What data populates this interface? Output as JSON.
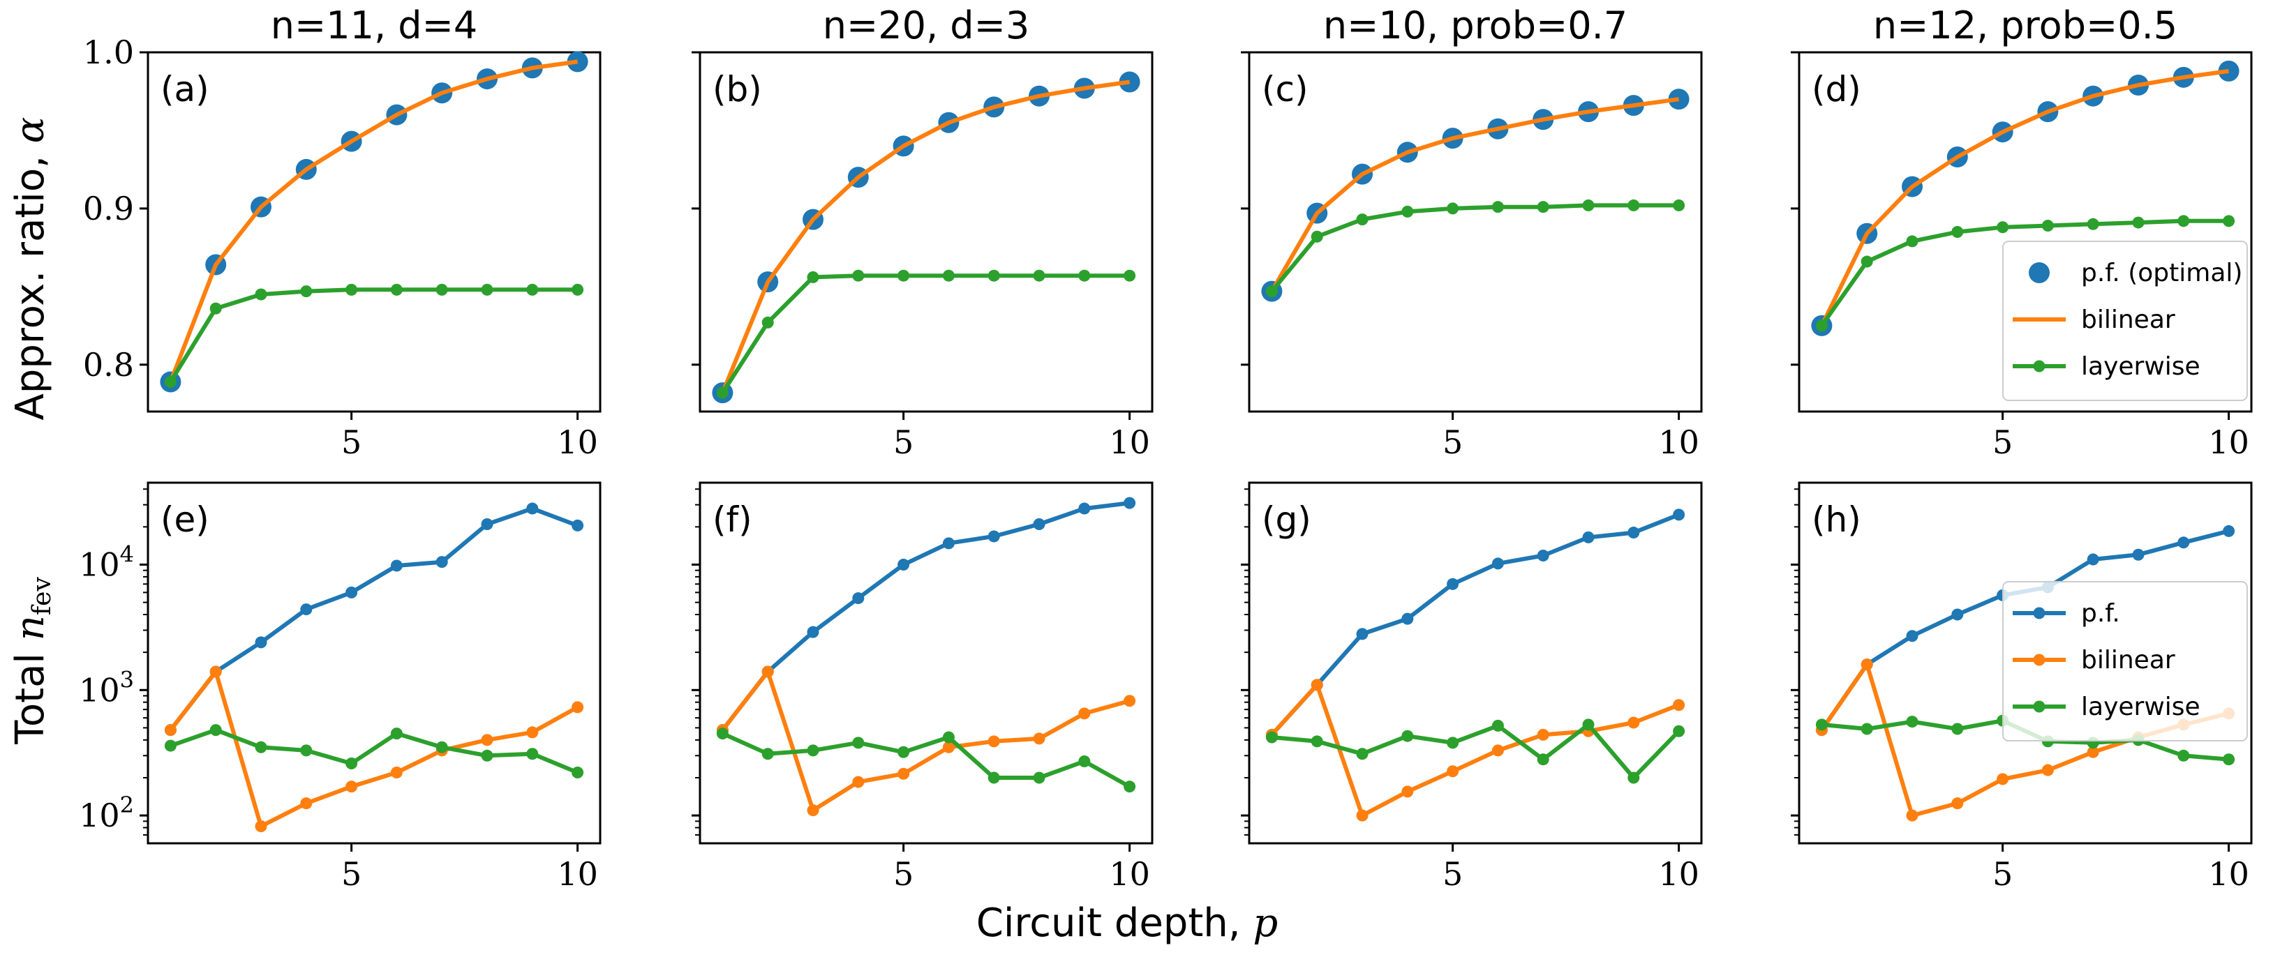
{
  "figure": {
    "xlabel_text": "Circuit depth, ",
    "xlabel_symbol": "p",
    "top_ylabel_text": "Approx. ratio, ",
    "top_ylabel_symbol": "α",
    "bottom_ylabel_text": "Total ",
    "bottom_ylabel_symbol": "n",
    "bottom_ylabel_sub": "fev"
  },
  "colors": {
    "blue": "#1f77b4",
    "orange": "#ff7f0e",
    "green": "#2ca02c"
  },
  "chart_data": [
    {
      "panel": "a",
      "label": "(a)",
      "title": "n=11, d=4",
      "type": "line",
      "yscale": "linear",
      "xlim": [
        0.5,
        10.5
      ],
      "ylim": [
        0.77,
        1.0
      ],
      "xticks": [
        5,
        10
      ],
      "xtick_labels": [
        "5",
        "10"
      ],
      "yticks": [
        0.8,
        0.9,
        1.0
      ],
      "ytick_labels": [
        "0.8",
        "0.9",
        "1.0"
      ],
      "legend": [],
      "series": [
        {
          "name": "p.f. (optimal)",
          "style": "scatter",
          "color": "#1f77b4",
          "x": [
            1,
            2,
            3,
            4,
            5,
            6,
            7,
            8,
            9,
            10
          ],
          "values": [
            0.789,
            0.864,
            0.901,
            0.925,
            0.943,
            0.96,
            0.974,
            0.983,
            0.99,
            0.994
          ]
        },
        {
          "name": "bilinear",
          "style": "line",
          "color": "#ff7f0e",
          "x": [
            1,
            2,
            3,
            4,
            5,
            6,
            7,
            8,
            9,
            10
          ],
          "values": [
            0.789,
            0.864,
            0.901,
            0.925,
            0.943,
            0.96,
            0.974,
            0.983,
            0.99,
            0.994
          ]
        },
        {
          "name": "layerwise",
          "style": "line-marker",
          "color": "#2ca02c",
          "x": [
            1,
            2,
            3,
            4,
            5,
            6,
            7,
            8,
            9,
            10
          ],
          "values": [
            0.789,
            0.836,
            0.845,
            0.847,
            0.848,
            0.848,
            0.848,
            0.848,
            0.848,
            0.848
          ]
        }
      ]
    },
    {
      "panel": "b",
      "label": "(b)",
      "title": "n=20, d=3",
      "type": "line",
      "yscale": "linear",
      "xlim": [
        0.5,
        10.5
      ],
      "ylim": [
        0.77,
        1.0
      ],
      "xticks": [
        5,
        10
      ],
      "xtick_labels": [
        "5",
        "10"
      ],
      "yticks": [
        0.8,
        0.9,
        1.0
      ],
      "ytick_labels": [
        "",
        "",
        ""
      ],
      "legend": [],
      "series": [
        {
          "name": "p.f. (optimal)",
          "style": "scatter",
          "color": "#1f77b4",
          "x": [
            1,
            2,
            3,
            4,
            5,
            6,
            7,
            8,
            9,
            10
          ],
          "values": [
            0.782,
            0.853,
            0.893,
            0.92,
            0.94,
            0.955,
            0.965,
            0.972,
            0.977,
            0.981
          ]
        },
        {
          "name": "bilinear",
          "style": "line",
          "color": "#ff7f0e",
          "x": [
            1,
            2,
            3,
            4,
            5,
            6,
            7,
            8,
            9,
            10
          ],
          "values": [
            0.782,
            0.853,
            0.893,
            0.92,
            0.94,
            0.955,
            0.965,
            0.972,
            0.977,
            0.981
          ]
        },
        {
          "name": "layerwise",
          "style": "line-marker",
          "color": "#2ca02c",
          "x": [
            1,
            2,
            3,
            4,
            5,
            6,
            7,
            8,
            9,
            10
          ],
          "values": [
            0.782,
            0.827,
            0.856,
            0.857,
            0.857,
            0.857,
            0.857,
            0.857,
            0.857,
            0.857
          ]
        }
      ]
    },
    {
      "panel": "c",
      "label": "(c)",
      "title": "n=10, prob=0.7",
      "type": "line",
      "yscale": "linear",
      "xlim": [
        0.5,
        10.5
      ],
      "ylim": [
        0.77,
        1.0
      ],
      "xticks": [
        5,
        10
      ],
      "xtick_labels": [
        "5",
        "10"
      ],
      "yticks": [
        0.8,
        0.9,
        1.0
      ],
      "ytick_labels": [
        "",
        "",
        ""
      ],
      "legend": [],
      "series": [
        {
          "name": "p.f. (optimal)",
          "style": "scatter",
          "color": "#1f77b4",
          "x": [
            1,
            2,
            3,
            4,
            5,
            6,
            7,
            8,
            9,
            10
          ],
          "values": [
            0.847,
            0.897,
            0.922,
            0.936,
            0.945,
            0.951,
            0.957,
            0.962,
            0.966,
            0.97
          ]
        },
        {
          "name": "bilinear",
          "style": "line",
          "color": "#ff7f0e",
          "x": [
            1,
            2,
            3,
            4,
            5,
            6,
            7,
            8,
            9,
            10
          ],
          "values": [
            0.847,
            0.897,
            0.922,
            0.936,
            0.945,
            0.951,
            0.957,
            0.962,
            0.966,
            0.97
          ]
        },
        {
          "name": "layerwise",
          "style": "line-marker",
          "color": "#2ca02c",
          "x": [
            1,
            2,
            3,
            4,
            5,
            6,
            7,
            8,
            9,
            10
          ],
          "values": [
            0.847,
            0.882,
            0.893,
            0.898,
            0.9,
            0.901,
            0.901,
            0.902,
            0.902,
            0.902
          ]
        }
      ]
    },
    {
      "panel": "d",
      "label": "(d)",
      "title": "n=12, prob=0.5",
      "type": "line",
      "yscale": "linear",
      "xlim": [
        0.5,
        10.5
      ],
      "ylim": [
        0.77,
        1.0
      ],
      "xticks": [
        5,
        10
      ],
      "xtick_labels": [
        "5",
        "10"
      ],
      "yticks": [
        0.8,
        0.9,
        1.0
      ],
      "ytick_labels": [
        "",
        "",
        ""
      ],
      "legend": [
        "p.f. (optimal)",
        "bilinear",
        "layerwise"
      ],
      "legend_position": "lower-right",
      "series": [
        {
          "name": "p.f. (optimal)",
          "style": "scatter",
          "color": "#1f77b4",
          "x": [
            1,
            2,
            3,
            4,
            5,
            6,
            7,
            8,
            9,
            10
          ],
          "values": [
            0.825,
            0.884,
            0.914,
            0.933,
            0.949,
            0.962,
            0.972,
            0.979,
            0.984,
            0.988
          ]
        },
        {
          "name": "bilinear",
          "style": "line",
          "color": "#ff7f0e",
          "x": [
            1,
            2,
            3,
            4,
            5,
            6,
            7,
            8,
            9,
            10
          ],
          "values": [
            0.825,
            0.884,
            0.914,
            0.933,
            0.949,
            0.962,
            0.972,
            0.979,
            0.984,
            0.988
          ]
        },
        {
          "name": "layerwise",
          "style": "line-marker",
          "color": "#2ca02c",
          "x": [
            1,
            2,
            3,
            4,
            5,
            6,
            7,
            8,
            9,
            10
          ],
          "values": [
            0.825,
            0.866,
            0.879,
            0.885,
            0.888,
            0.889,
            0.89,
            0.891,
            0.892,
            0.892
          ]
        }
      ]
    },
    {
      "panel": "e",
      "label": "(e)",
      "title": "",
      "type": "line",
      "yscale": "log",
      "xlim": [
        0.5,
        10.5
      ],
      "ylim": [
        60,
        45000
      ],
      "xticks": [
        5,
        10
      ],
      "xtick_labels": [
        "5",
        "10"
      ],
      "yticks": [
        100,
        1000,
        10000
      ],
      "ytick_labels": [
        "10^2",
        "10^3",
        "10^4"
      ],
      "legend": [],
      "series": [
        {
          "name": "p.f.",
          "style": "line-marker",
          "color": "#1f77b4",
          "x": [
            1,
            2,
            3,
            4,
            5,
            6,
            7,
            8,
            9,
            10
          ],
          "values": [
            480,
            1400,
            2400,
            4400,
            6000,
            9800,
            10500,
            21000,
            28000,
            20500
          ]
        },
        {
          "name": "bilinear",
          "style": "line-marker",
          "color": "#ff7f0e",
          "x": [
            1,
            2,
            3,
            4,
            5,
            6,
            7,
            8,
            9,
            10
          ],
          "values": [
            480,
            1400,
            82,
            125,
            170,
            220,
            330,
            400,
            460,
            730
          ]
        },
        {
          "name": "layerwise",
          "style": "line-marker",
          "color": "#2ca02c",
          "x": [
            1,
            2,
            3,
            4,
            5,
            6,
            7,
            8,
            9,
            10
          ],
          "values": [
            360,
            480,
            350,
            330,
            260,
            450,
            350,
            300,
            310,
            220
          ]
        }
      ]
    },
    {
      "panel": "f",
      "label": "(f)",
      "title": "",
      "type": "line",
      "yscale": "log",
      "xlim": [
        0.5,
        10.5
      ],
      "ylim": [
        60,
        45000
      ],
      "xticks": [
        5,
        10
      ],
      "xtick_labels": [
        "5",
        "10"
      ],
      "yticks": [
        100,
        1000,
        10000
      ],
      "ytick_labels": [
        "",
        "",
        ""
      ],
      "legend": [],
      "series": [
        {
          "name": "p.f.",
          "style": "line-marker",
          "color": "#1f77b4",
          "x": [
            1,
            2,
            3,
            4,
            5,
            6,
            7,
            8,
            9,
            10
          ],
          "values": [
            480,
            1400,
            2900,
            5400,
            10000,
            14800,
            16800,
            21000,
            28000,
            31000
          ]
        },
        {
          "name": "bilinear",
          "style": "line-marker",
          "color": "#ff7f0e",
          "x": [
            1,
            2,
            3,
            4,
            5,
            6,
            7,
            8,
            9,
            10
          ],
          "values": [
            480,
            1400,
            110,
            185,
            215,
            350,
            390,
            410,
            650,
            820
          ]
        },
        {
          "name": "layerwise",
          "style": "line-marker",
          "color": "#2ca02c",
          "x": [
            1,
            2,
            3,
            4,
            5,
            6,
            7,
            8,
            9,
            10
          ],
          "values": [
            450,
            310,
            330,
            380,
            320,
            420,
            200,
            200,
            270,
            170
          ]
        }
      ]
    },
    {
      "panel": "g",
      "label": "(g)",
      "title": "",
      "type": "line",
      "yscale": "log",
      "xlim": [
        0.5,
        10.5
      ],
      "ylim": [
        60,
        45000
      ],
      "xticks": [
        5,
        10
      ],
      "xtick_labels": [
        "5",
        "10"
      ],
      "yticks": [
        100,
        1000,
        10000
      ],
      "ytick_labels": [
        "",
        "",
        ""
      ],
      "legend": [],
      "series": [
        {
          "name": "p.f.",
          "style": "line-marker",
          "color": "#1f77b4",
          "x": [
            1,
            2,
            3,
            4,
            5,
            6,
            7,
            8,
            9,
            10
          ],
          "values": [
            440,
            1100,
            2800,
            3700,
            7000,
            10200,
            11800,
            16500,
            18000,
            25000
          ]
        },
        {
          "name": "bilinear",
          "style": "line-marker",
          "color": "#ff7f0e",
          "x": [
            1,
            2,
            3,
            4,
            5,
            6,
            7,
            8,
            9,
            10
          ],
          "values": [
            440,
            1100,
            100,
            155,
            225,
            330,
            440,
            470,
            550,
            760
          ]
        },
        {
          "name": "layerwise",
          "style": "line-marker",
          "color": "#2ca02c",
          "x": [
            1,
            2,
            3,
            4,
            5,
            6,
            7,
            8,
            9,
            10
          ],
          "values": [
            420,
            390,
            310,
            430,
            380,
            520,
            280,
            530,
            200,
            470
          ]
        }
      ]
    },
    {
      "panel": "h",
      "label": "(h)",
      "title": "",
      "type": "line",
      "yscale": "log",
      "xlim": [
        0.5,
        10.5
      ],
      "ylim": [
        60,
        45000
      ],
      "xticks": [
        5,
        10
      ],
      "xtick_labels": [
        "5",
        "10"
      ],
      "yticks": [
        100,
        1000,
        10000
      ],
      "ytick_labels": [
        "",
        "",
        ""
      ],
      "legend": [
        "p.f.",
        "bilinear",
        "layerwise"
      ],
      "legend_position": "upper-right",
      "series": [
        {
          "name": "p.f.",
          "style": "line-marker",
          "color": "#1f77b4",
          "x": [
            1,
            2,
            3,
            4,
            5,
            6,
            7,
            8,
            9,
            10
          ],
          "values": [
            480,
            1600,
            2700,
            4000,
            5700,
            6600,
            11000,
            12000,
            15000,
            18500
          ]
        },
        {
          "name": "bilinear",
          "style": "line-marker",
          "color": "#ff7f0e",
          "x": [
            1,
            2,
            3,
            4,
            5,
            6,
            7,
            8,
            9,
            10
          ],
          "values": [
            480,
            1600,
            100,
            125,
            195,
            230,
            320,
            420,
            530,
            650
          ]
        },
        {
          "name": "layerwise",
          "style": "line-marker",
          "color": "#2ca02c",
          "x": [
            1,
            2,
            3,
            4,
            5,
            6,
            7,
            8,
            9,
            10
          ],
          "values": [
            530,
            490,
            560,
            490,
            570,
            390,
            380,
            400,
            300,
            280
          ]
        }
      ]
    }
  ]
}
